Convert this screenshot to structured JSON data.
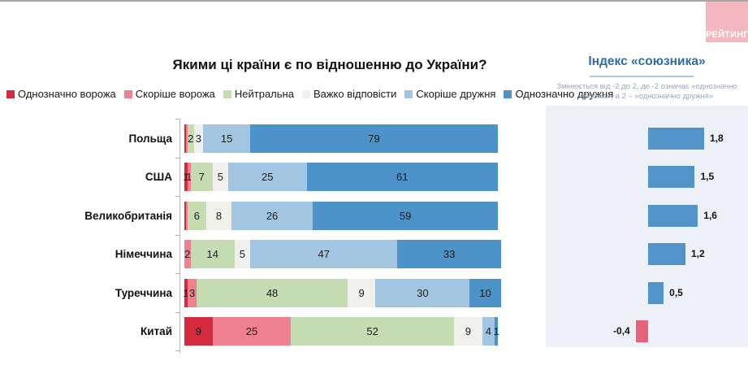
{
  "header": {
    "title": "Якими ці країни є по відношенню до України?",
    "logo_text": "РЕЙТИНГ"
  },
  "chart_data": {
    "type": "bar",
    "stacked": true,
    "orientation": "horizontal",
    "unit": "percent",
    "legend_position": "top",
    "categories": [
      "Польща",
      "США",
      "Великобританія",
      "Німеччина",
      "Туреччина",
      "Китай"
    ],
    "series": [
      {
        "name": "Однозначно ворожа",
        "color": "#d32b3b",
        "values": [
          0.5,
          1,
          0.5,
          0,
          1,
          9
        ],
        "labels": [
          "",
          "1",
          "",
          "",
          "1",
          "9"
        ]
      },
      {
        "name": "Скоріше ворожа",
        "color": "#ee8090",
        "values": [
          0.5,
          1,
          0.5,
          2,
          3,
          25
        ],
        "labels": [
          "",
          "1",
          "",
          "2",
          "3",
          "25"
        ]
      },
      {
        "name": "Нейтральна",
        "color": "#c4dcb0",
        "values": [
          2,
          7,
          6,
          14,
          48,
          52
        ],
        "labels": [
          "2",
          "7",
          "6",
          "14",
          "48",
          "52"
        ]
      },
      {
        "name": "Важко відповісти",
        "color": "#f0f0ed",
        "values": [
          3,
          5,
          8,
          5,
          9,
          9
        ],
        "labels": [
          "3",
          "5",
          "8",
          "5",
          "9",
          "9"
        ]
      },
      {
        "name": "Скоріше дружня",
        "color": "#a2c6e2",
        "values": [
          15,
          25,
          26,
          47,
          30,
          4
        ],
        "labels": [
          "15",
          "25",
          "26",
          "47",
          "30",
          "4"
        ]
      },
      {
        "name": "Однозначно дружня",
        "color": "#4b93c9",
        "values": [
          79,
          61,
          59,
          33,
          10,
          1
        ],
        "labels": [
          "79",
          "61",
          "59",
          "33",
          "10",
          "1"
        ]
      }
    ],
    "index_panel": {
      "title": "Індекс «союзника»",
      "subtitle": "Змінюється від -2 до 2, де -2 означає «однозначно ворожа», а 2 – «однозначно дружня»",
      "range": [
        -2,
        2
      ],
      "values": [
        1.8,
        1.5,
        1.6,
        1.2,
        0.5,
        -0.4
      ],
      "labels": [
        "1,8",
        "1,5",
        "1,6",
        "1,2",
        "0,5",
        "-0,4"
      ],
      "positive_color": "#5293cc",
      "negative_color": "#e8627a",
      "panel_bg": "#edf1f7"
    }
  }
}
